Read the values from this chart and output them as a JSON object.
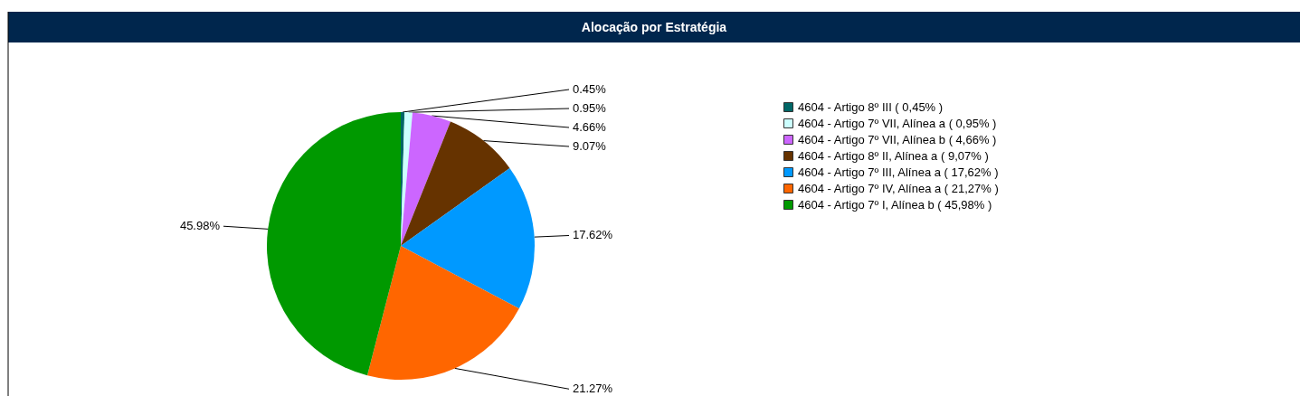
{
  "chart_data": {
    "type": "pie",
    "title": "Alocação por Estratégia",
    "categories": [
      "4604 - Artigo 8º III   ( 0,45% )",
      "4604 - Artigo 7º VII, Alínea a   ( 0,95% )",
      "4604 - Artigo 7º VII, Alínea b   ( 4,66% )",
      "4604 - Artigo 8º II, Alínea a   ( 9,07% )",
      "4604 - Artigo 7º III, Alínea a   ( 17,62% )",
      "4604 - Artigo 7º IV, Alínea a   ( 21,27% )",
      "4604 - Artigo 7º I, Alínea b   ( 45,98% )"
    ],
    "values": [
      0.45,
      0.95,
      4.66,
      9.07,
      17.62,
      21.27,
      45.98
    ],
    "value_labels": [
      "0.45%",
      "0.95%",
      "4.66%",
      "9.07%",
      "17.62%",
      "21.27%",
      "45.98%"
    ],
    "colors": [
      "#006666",
      "#ccffff",
      "#cc66ff",
      "#663300",
      "#0099ff",
      "#ff6600",
      "#009900"
    ],
    "legend": "right"
  }
}
